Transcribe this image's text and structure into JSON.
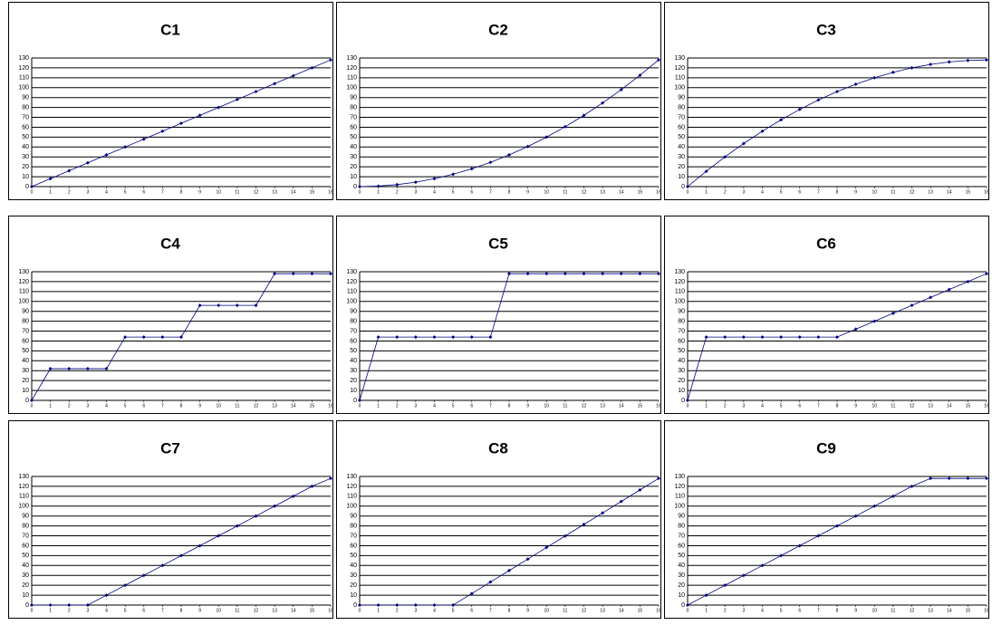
{
  "chart_data": [
    {
      "type": "line",
      "title": "C1",
      "x": [
        0,
        1,
        2,
        3,
        4,
        5,
        6,
        7,
        8,
        9,
        10,
        11,
        12,
        13,
        14,
        15,
        16
      ],
      "values": [
        0,
        8,
        16,
        24,
        32,
        40,
        48,
        56,
        64,
        72,
        80,
        88,
        96,
        104,
        112,
        120,
        128
      ],
      "color": "#000080",
      "xlim": [
        0,
        16
      ],
      "ylim": [
        0,
        130
      ],
      "xticks": [
        0,
        1,
        2,
        3,
        4,
        5,
        6,
        7,
        8,
        9,
        10,
        11,
        12,
        13,
        14,
        15,
        16
      ],
      "yticks": [
        0,
        10,
        20,
        30,
        40,
        50,
        60,
        70,
        80,
        90,
        100,
        110,
        120,
        130
      ],
      "grid": true
    },
    {
      "type": "line",
      "title": "C2",
      "x": [
        0,
        1,
        2,
        3,
        4,
        5,
        6,
        7,
        8,
        9,
        10,
        11,
        12,
        13,
        14,
        15,
        16
      ],
      "values": [
        0,
        0.5,
        2,
        4.5,
        8,
        12.5,
        18,
        24.5,
        32,
        40.5,
        50,
        60.5,
        72,
        84.5,
        98,
        112.5,
        128
      ],
      "color": "#000080",
      "xlim": [
        0,
        16
      ],
      "ylim": [
        0,
        130
      ],
      "xticks": [
        0,
        1,
        2,
        3,
        4,
        5,
        6,
        7,
        8,
        9,
        10,
        11,
        12,
        13,
        14,
        15,
        16
      ],
      "yticks": [
        0,
        10,
        20,
        30,
        40,
        50,
        60,
        70,
        80,
        90,
        100,
        110,
        120,
        130
      ],
      "grid": true
    },
    {
      "type": "line",
      "title": "C3",
      "x": [
        0,
        1,
        2,
        3,
        4,
        5,
        6,
        7,
        8,
        9,
        10,
        11,
        12,
        13,
        14,
        15,
        16
      ],
      "values": [
        0,
        15.5,
        30,
        43.5,
        56,
        67.5,
        78,
        87.5,
        96,
        103.5,
        110,
        115.5,
        120,
        123.5,
        126,
        127.5,
        128
      ],
      "color": "#000080",
      "xlim": [
        0,
        16
      ],
      "ylim": [
        0,
        130
      ],
      "xticks": [
        0,
        1,
        2,
        3,
        4,
        5,
        6,
        7,
        8,
        9,
        10,
        11,
        12,
        13,
        14,
        15,
        16
      ],
      "yticks": [
        0,
        10,
        20,
        30,
        40,
        50,
        60,
        70,
        80,
        90,
        100,
        110,
        120,
        130
      ],
      "grid": true
    },
    {
      "type": "line",
      "title": "C4",
      "x": [
        0,
        1,
        2,
        3,
        4,
        5,
        6,
        7,
        8,
        9,
        10,
        11,
        12,
        13,
        14,
        15,
        16
      ],
      "values": [
        0,
        32,
        32,
        32,
        32,
        64,
        64,
        64,
        64,
        96,
        96,
        96,
        96,
        128,
        128,
        128,
        128
      ],
      "color": "#000080",
      "xlim": [
        0,
        16
      ],
      "ylim": [
        0,
        130
      ],
      "xticks": [
        0,
        1,
        2,
        3,
        4,
        5,
        6,
        7,
        8,
        9,
        10,
        11,
        12,
        13,
        14,
        15,
        16
      ],
      "yticks": [
        0,
        10,
        20,
        30,
        40,
        50,
        60,
        70,
        80,
        90,
        100,
        110,
        120,
        130
      ],
      "grid": true
    },
    {
      "type": "line",
      "title": "C5",
      "x": [
        0,
        1,
        2,
        3,
        4,
        5,
        6,
        7,
        8,
        9,
        10,
        11,
        12,
        13,
        14,
        15,
        16
      ],
      "values": [
        0,
        64,
        64,
        64,
        64,
        64,
        64,
        64,
        128,
        128,
        128,
        128,
        128,
        128,
        128,
        128,
        128
      ],
      "color": "#000080",
      "xlim": [
        0,
        16
      ],
      "ylim": [
        0,
        130
      ],
      "xticks": [
        0,
        1,
        2,
        3,
        4,
        5,
        6,
        7,
        8,
        9,
        10,
        11,
        12,
        13,
        14,
        15,
        16
      ],
      "yticks": [
        0,
        10,
        20,
        30,
        40,
        50,
        60,
        70,
        80,
        90,
        100,
        110,
        120,
        130
      ],
      "grid": true
    },
    {
      "type": "line",
      "title": "C6",
      "x": [
        0,
        1,
        2,
        3,
        4,
        5,
        6,
        7,
        8,
        9,
        10,
        11,
        12,
        13,
        14,
        15,
        16
      ],
      "values": [
        0,
        64,
        64,
        64,
        64,
        64,
        64,
        64,
        64,
        72,
        80,
        88,
        96,
        104,
        112,
        120,
        128
      ],
      "color": "#000080",
      "xlim": [
        0,
        16
      ],
      "ylim": [
        0,
        130
      ],
      "xticks": [
        0,
        1,
        2,
        3,
        4,
        5,
        6,
        7,
        8,
        9,
        10,
        11,
        12,
        13,
        14,
        15,
        16
      ],
      "yticks": [
        0,
        10,
        20,
        30,
        40,
        50,
        60,
        70,
        80,
        90,
        100,
        110,
        120,
        130
      ],
      "grid": true
    },
    {
      "type": "line",
      "title": "C7",
      "x": [
        0,
        1,
        2,
        3,
        4,
        5,
        6,
        7,
        8,
        9,
        10,
        11,
        12,
        13,
        14,
        15,
        16
      ],
      "values": [
        0,
        0,
        0,
        0,
        10,
        20,
        30,
        40,
        50,
        60,
        70,
        80,
        90,
        100,
        110,
        120,
        128
      ],
      "color": "#000080",
      "xlim": [
        0,
        16
      ],
      "ylim": [
        0,
        130
      ],
      "xticks": [
        0,
        1,
        2,
        3,
        4,
        5,
        6,
        7,
        8,
        9,
        10,
        11,
        12,
        13,
        14,
        15,
        16
      ],
      "yticks": [
        0,
        10,
        20,
        30,
        40,
        50,
        60,
        70,
        80,
        90,
        100,
        110,
        120,
        130
      ],
      "grid": true
    },
    {
      "type": "line",
      "title": "C8",
      "x": [
        0,
        1,
        2,
        3,
        4,
        5,
        6,
        7,
        8,
        9,
        10,
        11,
        12,
        13,
        14,
        15,
        16
      ],
      "values": [
        0,
        0,
        0,
        0,
        0,
        0,
        11.6,
        23.3,
        34.9,
        46.5,
        58.2,
        69.8,
        81.5,
        93.1,
        104.7,
        116.4,
        128
      ],
      "color": "#000080",
      "xlim": [
        0,
        16
      ],
      "ylim": [
        0,
        130
      ],
      "xticks": [
        0,
        1,
        2,
        3,
        4,
        5,
        6,
        7,
        8,
        9,
        10,
        11,
        12,
        13,
        14,
        15,
        16
      ],
      "yticks": [
        0,
        10,
        20,
        30,
        40,
        50,
        60,
        70,
        80,
        90,
        100,
        110,
        120,
        130
      ],
      "grid": true
    },
    {
      "type": "line",
      "title": "C9",
      "x": [
        0,
        1,
        2,
        3,
        4,
        5,
        6,
        7,
        8,
        9,
        10,
        11,
        12,
        13,
        14,
        15,
        16
      ],
      "values": [
        0,
        10,
        20,
        30,
        40,
        50,
        60,
        70,
        80,
        90,
        100,
        110,
        120,
        128,
        128,
        128,
        128
      ],
      "color": "#000080",
      "xlim": [
        0,
        16
      ],
      "ylim": [
        0,
        130
      ],
      "xticks": [
        0,
        1,
        2,
        3,
        4,
        5,
        6,
        7,
        8,
        9,
        10,
        11,
        12,
        13,
        14,
        15,
        16
      ],
      "yticks": [
        0,
        10,
        20,
        30,
        40,
        50,
        60,
        70,
        80,
        90,
        100,
        110,
        120,
        130
      ],
      "grid": true
    }
  ]
}
